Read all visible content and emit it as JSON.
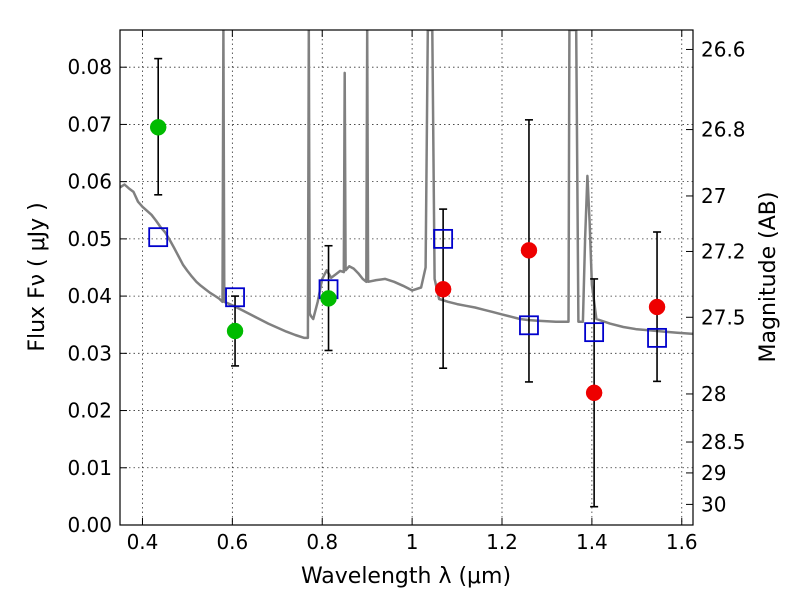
{
  "chart_data": {
    "type": "scatter",
    "xlabel": "Wavelength  λ (μm)",
    "ylabel": "Flux  Fν  ( μJy )",
    "y2label": "Magnitude (AB)",
    "xlim": [
      0.35,
      1.625
    ],
    "ylim": [
      0.0,
      0.0865
    ],
    "x_ticks": [
      0.4,
      0.6,
      0.8,
      1.0,
      1.2,
      1.4,
      1.6
    ],
    "x_tick_labels": [
      "0.4",
      "0.6",
      "0.8",
      "1",
      "1.2",
      "1.4",
      "1.6"
    ],
    "y_ticks": [
      0.0,
      0.01,
      0.02,
      0.03,
      0.04,
      0.05,
      0.06,
      0.07,
      0.08
    ],
    "y_tick_labels": [
      "0.00",
      "0.01",
      "0.02",
      "0.03",
      "0.04",
      "0.05",
      "0.06",
      "0.07",
      "0.08"
    ],
    "y2_ticks": [
      {
        "label": "26.6",
        "flux": 0.0831
      },
      {
        "label": "26.8",
        "flux": 0.0691
      },
      {
        "label": "27",
        "flux": 0.0575
      },
      {
        "label": "27.2",
        "flux": 0.0478
      },
      {
        "label": "27.5",
        "flux": 0.0363
      },
      {
        "label": "28",
        "flux": 0.0229
      },
      {
        "label": "28.5",
        "flux": 0.0145
      },
      {
        "label": "29",
        "flux": 0.0091
      },
      {
        "label": "30",
        "flux": 0.0036
      }
    ],
    "grid": true,
    "colors": {
      "observed_optical": "#00bb00",
      "observed_nir": "#ee0000",
      "model": "#0000cc",
      "sed_line": "#808080",
      "errorbar": "#000000"
    },
    "observed_points": [
      {
        "x": 0.435,
        "y": 0.0695,
        "yerr_low": 0.0118,
        "yerr_high": 0.012,
        "band": "optical"
      },
      {
        "x": 0.606,
        "y": 0.0339,
        "yerr_low": 0.0061,
        "yerr_high": 0.0061,
        "band": "optical"
      },
      {
        "x": 0.814,
        "y": 0.0396,
        "yerr_low": 0.0091,
        "yerr_high": 0.0092,
        "band": "optical"
      },
      {
        "x": 1.069,
        "y": 0.0412,
        "yerr_low": 0.0138,
        "yerr_high": 0.014,
        "band": "nir"
      },
      {
        "x": 1.26,
        "y": 0.048,
        "yerr_low": 0.023,
        "yerr_high": 0.0228,
        "band": "nir"
      },
      {
        "x": 1.405,
        "y": 0.0231,
        "yerr_low": 0.0199,
        "yerr_high": 0.0199,
        "band": "nir"
      },
      {
        "x": 1.545,
        "y": 0.0381,
        "yerr_low": 0.013,
        "yerr_high": 0.0131,
        "band": "nir"
      }
    ],
    "model_points": [
      {
        "x": 0.435,
        "y": 0.0503
      },
      {
        "x": 0.606,
        "y": 0.0398
      },
      {
        "x": 0.814,
        "y": 0.0412
      },
      {
        "x": 1.069,
        "y": 0.05
      },
      {
        "x": 1.26,
        "y": 0.0349
      },
      {
        "x": 1.405,
        "y": 0.0337
      },
      {
        "x": 1.545,
        "y": 0.0327
      }
    ],
    "sed_curve": [
      [
        0.35,
        0.059
      ],
      [
        0.36,
        0.0595
      ],
      [
        0.37,
        0.0588
      ],
      [
        0.38,
        0.0582
      ],
      [
        0.39,
        0.0565
      ],
      [
        0.4,
        0.0556
      ],
      [
        0.41,
        0.0549
      ],
      [
        0.42,
        0.0542
      ],
      [
        0.43,
        0.0532
      ],
      [
        0.44,
        0.0521
      ],
      [
        0.45,
        0.0512
      ],
      [
        0.46,
        0.0499
      ],
      [
        0.47,
        0.0485
      ],
      [
        0.48,
        0.047
      ],
      [
        0.49,
        0.0455
      ],
      [
        0.5,
        0.0444
      ],
      [
        0.51,
        0.0434
      ],
      [
        0.52,
        0.0425
      ],
      [
        0.53,
        0.0418
      ],
      [
        0.54,
        0.0412
      ],
      [
        0.55,
        0.0406
      ],
      [
        0.56,
        0.0401
      ],
      [
        0.57,
        0.0396
      ],
      [
        0.578,
        0.039
      ],
      [
        0.58,
        0.0865
      ],
      [
        0.582,
        0.039
      ],
      [
        0.6,
        0.0384
      ],
      [
        0.62,
        0.0376
      ],
      [
        0.64,
        0.0368
      ],
      [
        0.66,
        0.036
      ],
      [
        0.68,
        0.0352
      ],
      [
        0.7,
        0.0345
      ],
      [
        0.72,
        0.0338
      ],
      [
        0.74,
        0.0332
      ],
      [
        0.76,
        0.0327
      ],
      [
        0.768,
        0.0327
      ],
      [
        0.77,
        0.0865
      ],
      [
        0.772,
        0.037
      ],
      [
        0.775,
        0.0365
      ],
      [
        0.78,
        0.036
      ],
      [
        0.79,
        0.039
      ],
      [
        0.8,
        0.043
      ],
      [
        0.81,
        0.0445
      ],
      [
        0.82,
        0.0432
      ],
      [
        0.83,
        0.0438
      ],
      [
        0.84,
        0.0444
      ],
      [
        0.848,
        0.0442
      ],
      [
        0.85,
        0.079
      ],
      [
        0.852,
        0.0445
      ],
      [
        0.86,
        0.0452
      ],
      [
        0.87,
        0.0448
      ],
      [
        0.88,
        0.044
      ],
      [
        0.89,
        0.043
      ],
      [
        0.898,
        0.0425
      ],
      [
        0.9,
        0.0865
      ],
      [
        0.902,
        0.0425
      ],
      [
        0.92,
        0.0428
      ],
      [
        0.94,
        0.043
      ],
      [
        0.96,
        0.0425
      ],
      [
        0.98,
        0.0418
      ],
      [
        1.0,
        0.041
      ],
      [
        1.02,
        0.0415
      ],
      [
        1.03,
        0.045
      ],
      [
        1.035,
        0.0865
      ],
      [
        1.045,
        0.0865
      ],
      [
        1.05,
        0.043
      ],
      [
        1.06,
        0.0395
      ],
      [
        1.08,
        0.039
      ],
      [
        1.1,
        0.0386
      ],
      [
        1.12,
        0.0383
      ],
      [
        1.14,
        0.038
      ],
      [
        1.16,
        0.0376
      ],
      [
        1.18,
        0.0372
      ],
      [
        1.2,
        0.0368
      ],
      [
        1.22,
        0.0364
      ],
      [
        1.24,
        0.036
      ],
      [
        1.26,
        0.0358
      ],
      [
        1.28,
        0.0357
      ],
      [
        1.3,
        0.0356
      ],
      [
        1.32,
        0.0355
      ],
      [
        1.34,
        0.0355
      ],
      [
        1.348,
        0.0355
      ],
      [
        1.35,
        0.0865
      ],
      [
        1.365,
        0.0865
      ],
      [
        1.37,
        0.0355
      ],
      [
        1.38,
        0.0355
      ],
      [
        1.385,
        0.05
      ],
      [
        1.39,
        0.061
      ],
      [
        1.395,
        0.053
      ],
      [
        1.4,
        0.042
      ],
      [
        1.41,
        0.036
      ],
      [
        1.44,
        0.0352
      ],
      [
        1.47,
        0.0346
      ],
      [
        1.5,
        0.0342
      ],
      [
        1.53,
        0.034
      ],
      [
        1.56,
        0.0338
      ],
      [
        1.59,
        0.0336
      ],
      [
        1.625,
        0.0334
      ]
    ]
  }
}
